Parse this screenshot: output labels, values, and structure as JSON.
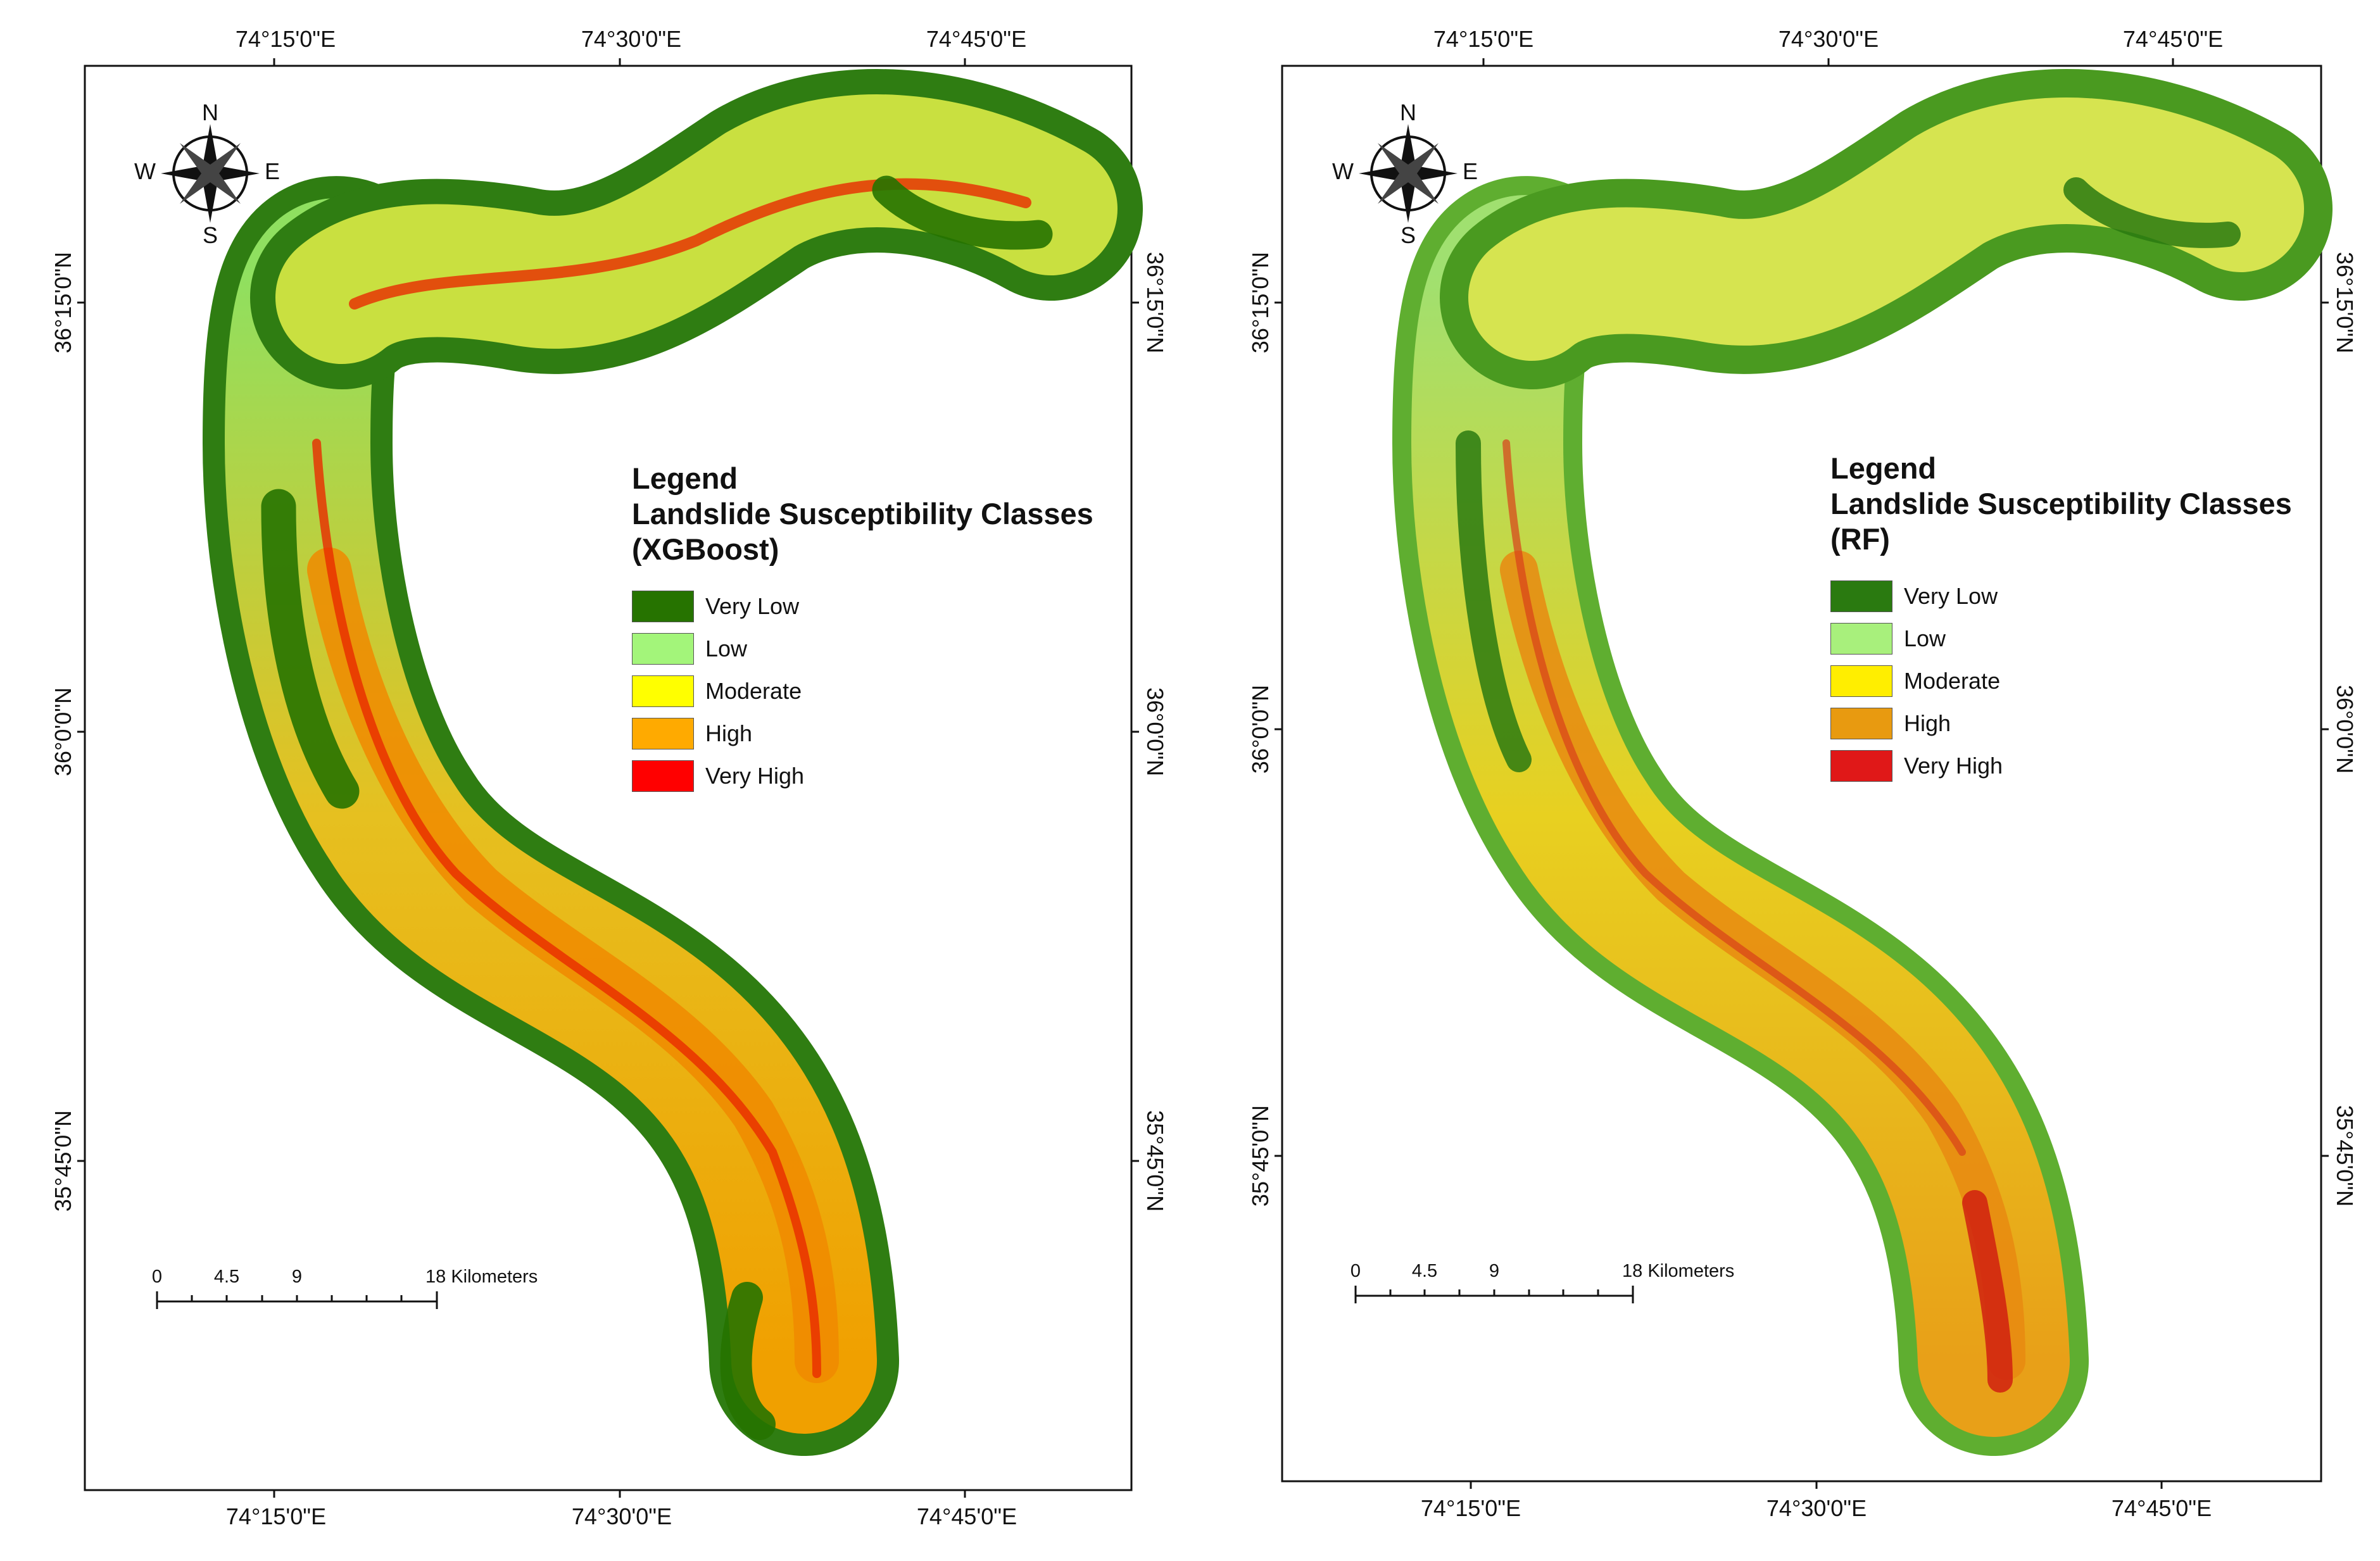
{
  "maps": [
    {
      "model": "XGBoost",
      "legend": {
        "title": "Legend",
        "subtitle": "Landslide Susceptibility Classes",
        "model_label": "(XGBoost)",
        "classes": [
          {
            "label": "Very Low",
            "color": "#267300"
          },
          {
            "label": "Low",
            "color": "#a3f57a"
          },
          {
            "label": "Moderate",
            "color": "#ffff00"
          },
          {
            "label": "High",
            "color": "#ffaa00"
          },
          {
            "label": "Very High",
            "color": "#ff0000"
          }
        ]
      },
      "top_ticks": [
        "74°15'0\"E",
        "74°30'0\"E",
        "74°45'0\"E"
      ],
      "bottom_ticks": [
        "74°15'0\"E",
        "74°30'0\"E",
        "74°45'0\"E"
      ],
      "left_ticks": [
        "36°15'0\"N",
        "36°0'0\"N",
        "35°45'0\"N"
      ],
      "right_ticks": [
        "36°15'0\"N",
        "36°0'0\"N",
        "35°45'0\"N"
      ],
      "scale": {
        "labels": [
          "0",
          "4.5",
          "9",
          "18 Kilometers"
        ]
      },
      "north_arrow": {
        "n": "N",
        "s": "S",
        "e": "E",
        "w": "W"
      }
    },
    {
      "model": "RF",
      "legend": {
        "title": "Legend",
        "subtitle": "Landslide Susceptibility Classes",
        "model_label": "(RF)",
        "classes": [
          {
            "label": "Very Low",
            "color": "#2a7a10"
          },
          {
            "label": "Low",
            "color": "#a8f07c"
          },
          {
            "label": "Moderate",
            "color": "#ffee00"
          },
          {
            "label": "High",
            "color": "#e89a10"
          },
          {
            "label": "Very High",
            "color": "#e01818"
          }
        ]
      },
      "top_ticks": [
        "74°15'0\"E",
        "74°30'0\"E",
        "74°45'0\"E"
      ],
      "bottom_ticks": [
        "74°15'0\"E",
        "74°30'0\"E",
        "74°45'0\"E"
      ],
      "left_ticks": [
        "36°15'0\"N",
        "36°0'0\"N",
        "35°45'0\"N"
      ],
      "right_ticks": [
        "36°15'0\"N",
        "36°0'0\"N",
        "35°45'0\"N"
      ],
      "scale": {
        "labels": [
          "0",
          "4.5",
          "9",
          "18 Kilometers"
        ]
      },
      "north_arrow": {
        "n": "N",
        "s": "S",
        "e": "E",
        "w": "W"
      }
    }
  ]
}
